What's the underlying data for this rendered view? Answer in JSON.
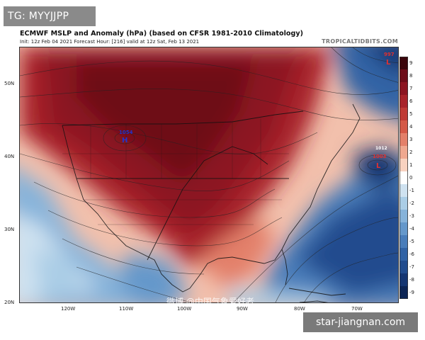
{
  "badge": "TG: MYYJJPP",
  "title": "ECMWF MSLP and Anomaly (hPa) (based on CFSR 1981-2010 Climatology)",
  "subtitle": "Init: 12z Feb 04 2021   Forecast Hour: [216]   valid at 12z Sat, Feb 13 2021",
  "brand": "TROPICALTIDBITS.COM",
  "lat_labels": [
    "50N",
    "40N",
    "30N",
    "20N"
  ],
  "lon_labels": [
    "120W",
    "110W",
    "100W",
    "90W",
    "80W",
    "70W"
  ],
  "colorbar": {
    "ticks": [
      "9",
      "8",
      "7",
      "6",
      "5",
      "4",
      "3",
      "2",
      "1",
      "0",
      "-1",
      "-2",
      "-3",
      "-4",
      "-5",
      "-6",
      "-7",
      "-8",
      "-9"
    ],
    "colors": [
      "#3a050b",
      "#6e0d19",
      "#8c1521",
      "#a8232a",
      "#bf3a35",
      "#d45a48",
      "#e3806a",
      "#efa890",
      "#f8d2c0",
      "#ffffff",
      "#cfe2f0",
      "#aacde6",
      "#86b3da",
      "#6598cb",
      "#497dba",
      "#3163a5",
      "#214c8e",
      "#153672",
      "#0c2454"
    ]
  },
  "pressure_centers": {
    "high": {
      "value": "1054",
      "letter": "H"
    },
    "low_east": {
      "value": "1003",
      "letter": "L",
      "contour": "1012"
    },
    "low_ne": {
      "value": "997",
      "letter": "L"
    }
  },
  "watermark": "微博 @中国气象爱好者",
  "site_badge": "star-jiangnan.com"
}
